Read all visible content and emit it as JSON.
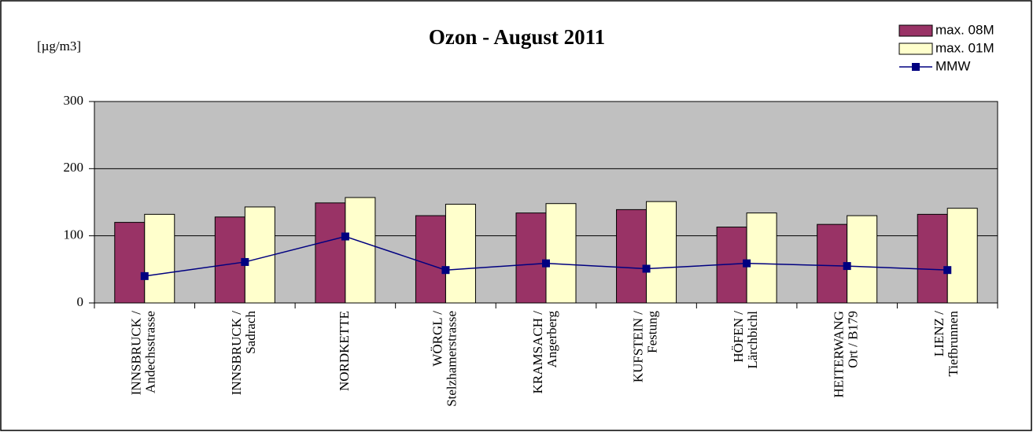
{
  "chart_data": {
    "type": "bar",
    "title": "Ozon - August 2011",
    "y_label": "[µg/m3]",
    "categories": [
      [
        "INNSBRUCK /",
        "Andechsstrasse"
      ],
      [
        "INNSBRUCK /",
        "Sadrach"
      ],
      [
        "NORDKETTE"
      ],
      [
        "WÖRGL /",
        "Stelzhamerstrasse"
      ],
      [
        "KRAMSACH /",
        "Angerberg"
      ],
      [
        "KUFSTEIN /",
        "Festung"
      ],
      [
        "HÖFEN /",
        "Lärchbichl"
      ],
      [
        "HEITERWANG",
        "Ort / B179"
      ],
      [
        "LIENZ /",
        "Tiefbrunnen"
      ]
    ],
    "series": [
      {
        "name": "max. 08M",
        "type": "bar",
        "color": "#993366",
        "values": [
          120,
          128,
          149,
          130,
          134,
          139,
          113,
          117,
          132
        ]
      },
      {
        "name": "max. 01M",
        "type": "bar",
        "color": "#ffffcc",
        "values": [
          132,
          143,
          157,
          147,
          148,
          151,
          134,
          130,
          141
        ]
      },
      {
        "name": "MMW",
        "type": "line",
        "color": "#000080",
        "values": [
          40,
          61,
          99,
          49,
          59,
          51,
          59,
          55,
          49
        ]
      }
    ],
    "ylim": [
      0,
      300
    ],
    "yticks": [
      0,
      100,
      200,
      300
    ],
    "grid": true,
    "legend": "top-right"
  }
}
